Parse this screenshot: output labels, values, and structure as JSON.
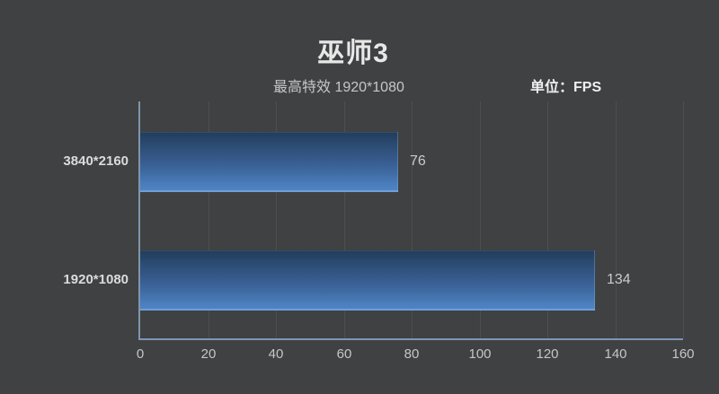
{
  "chart_data": {
    "type": "bar",
    "orientation": "horizontal",
    "title": "巫师3",
    "subtitle": "最高特效 1920*1080",
    "unit_label": "单位：FPS",
    "categories": [
      "3840*2160",
      "1920*1080"
    ],
    "values": [
      76,
      134
    ],
    "xlabel": "",
    "ylabel": "",
    "xlim": [
      0,
      160
    ],
    "x_ticks": [
      0,
      20,
      40,
      60,
      80,
      100,
      120,
      140,
      160
    ],
    "grid": true,
    "legend_position": "none",
    "colors": {
      "background": "#404142",
      "bar_gradient_top": "#223c5b",
      "bar_gradient_bottom": "#5085c6",
      "bar_bottom_edge": "#6f9cd8",
      "axis_line": "#7d95b5",
      "gridline": "#4e4e4e",
      "title_text": "#e8e8e8",
      "subtitle_text": "#c5c7c8",
      "unit_text": "#edeff0",
      "category_text": "#dadcdc",
      "value_text": "#c9cccc",
      "tick_text": "#c4c6c7"
    }
  }
}
